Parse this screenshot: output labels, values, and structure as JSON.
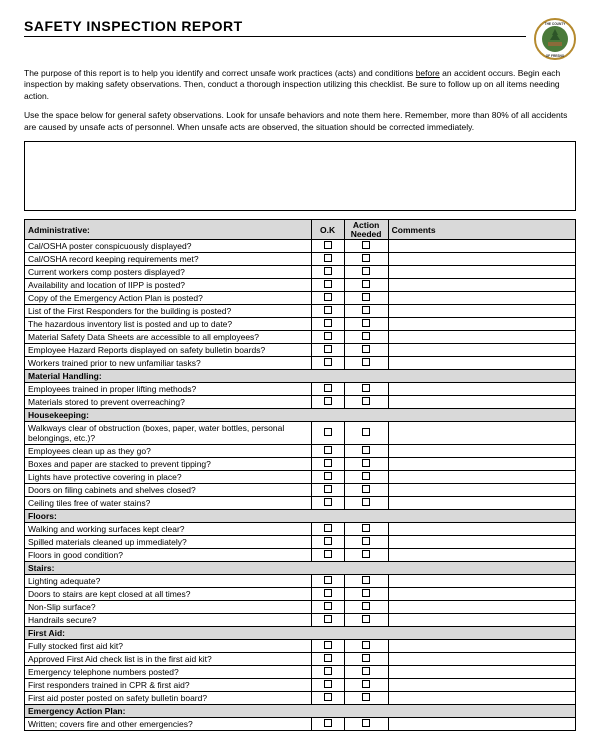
{
  "title": "SAFETY INSPECTION REPORT",
  "intro1_a": "The purpose of this report is to help you identify and correct unsafe work practices (acts) and conditions ",
  "intro1_u": "before",
  "intro1_b": " an accident occurs. Begin each inspection by making safety observations. Then, conduct a thorough inspection utilizing this checklist. Be sure to follow up on all items needing action.",
  "intro2": "Use the space below for general safety observations. Look for unsafe behaviors and note them here. Remember, more than 80% of all accidents are caused by unsafe acts of personnel. When unsafe acts are observed, the situation should be corrected immediately.",
  "headers": {
    "ok": "O.K",
    "action": "Action Needed",
    "comments": "Comments"
  },
  "sections": [
    {
      "name": "Administrative:",
      "items": [
        "Cal/OSHA poster conspicuously displayed?",
        "Cal/OSHA record keeping requirements met?",
        "Current workers comp posters displayed?",
        "Availability and location of IIPP is posted?",
        "Copy of the Emergency Action Plan is posted?",
        "List of the First Responders for the building is posted?",
        "The hazardous inventory list is posted and up to date?",
        "Material Safety Data Sheets are accessible to all employees?",
        "Employee Hazard Reports displayed on safety bulletin boards?",
        "Workers trained prior to new unfamiliar tasks?"
      ]
    },
    {
      "name": "Material Handling:",
      "items": [
        "Employees trained in proper lifting methods?",
        "Materials stored to prevent overreaching?"
      ]
    },
    {
      "name": "Housekeeping:",
      "items": [
        "Walkways clear of obstruction (boxes, paper, water bottles, personal belongings, etc.)?",
        "Employees clean up as they go?",
        "Boxes and paper are stacked to prevent tipping?",
        "Lights have protective covering in place?",
        "Doors on filing cabinets and shelves closed?",
        "Ceiling tiles free of water stains?"
      ]
    },
    {
      "name": "Floors:",
      "items": [
        "Walking and working surfaces kept clear?",
        "Spilled materials cleaned up immediately?",
        "Floors in good condition?"
      ]
    },
    {
      "name": "Stairs:",
      "items": [
        "Lighting adequate?",
        "Doors to stairs are kept closed at all times?",
        "Non-Slip surface?",
        "Handrails secure?"
      ]
    },
    {
      "name": "First Aid:",
      "items": [
        "Fully stocked first aid kit?",
        "Approved First Aid check list is in the first aid kit?",
        "Emergency telephone numbers posted?",
        "First responders trained in CPR & first aid?",
        "First aid poster posted on safety bulletin board?"
      ]
    },
    {
      "name": "Emergency Action Plan:",
      "items": [
        "Written; covers fire and other emergencies?"
      ]
    }
  ],
  "logo": {
    "outer_color": "#b58a2e",
    "inner_color": "#4a7a3a",
    "text_top": "THE COUNTY",
    "text_bottom": "OF FRESNO"
  }
}
